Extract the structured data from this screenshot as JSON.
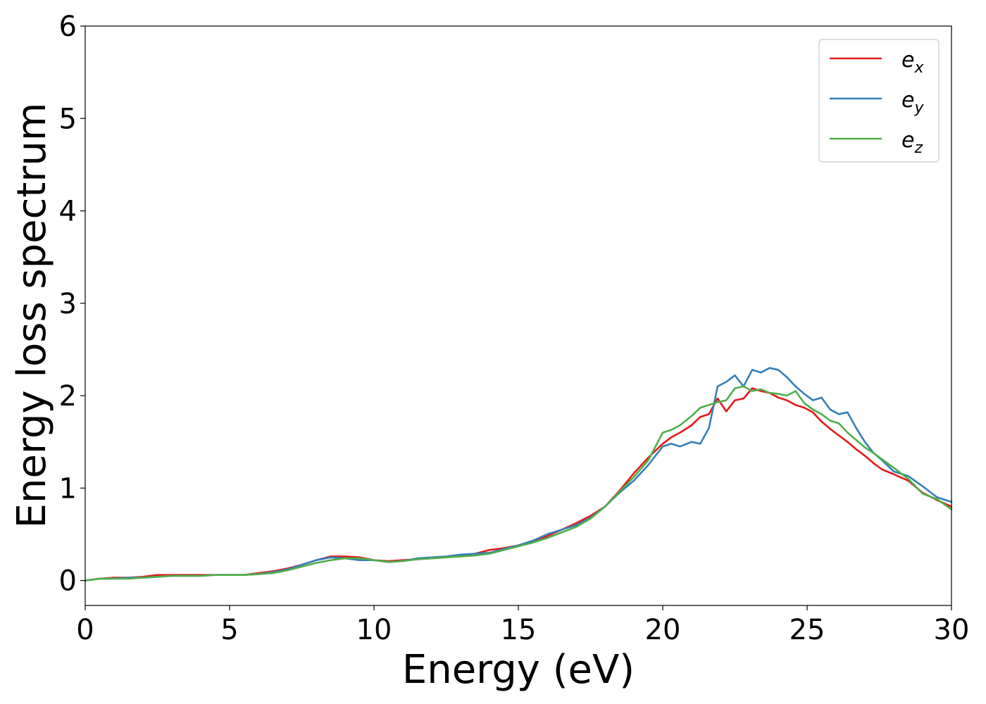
{
  "chart_data": {
    "type": "line",
    "title": "",
    "xlabel": "Energy (eV)",
    "ylabel": "Energy loss spectrum",
    "xlim": [
      0,
      30
    ],
    "ylim": [
      -0.27,
      6
    ],
    "xticks": [
      0,
      5,
      10,
      15,
      20,
      25,
      30
    ],
    "yticks": [
      0,
      1,
      2,
      3,
      4,
      5,
      6
    ],
    "grid": false,
    "legend_position": "top-right",
    "series": [
      {
        "name": "e_x",
        "legend_base": "e",
        "legend_sub": "x",
        "color": "#e41a1c",
        "x": [
          0,
          0.5,
          1,
          1.5,
          2,
          2.5,
          3,
          3.5,
          4,
          4.5,
          5,
          5.5,
          6,
          6.5,
          7,
          7.5,
          8,
          8.5,
          9,
          9.5,
          10,
          10.5,
          11,
          11.5,
          12,
          12.5,
          13,
          13.5,
          14,
          14.5,
          15,
          15.5,
          16,
          16.5,
          17,
          17.5,
          18,
          18.5,
          19,
          19.5,
          20,
          20.3,
          20.6,
          21,
          21.3,
          21.6,
          21.9,
          22.2,
          22.5,
          22.8,
          23.1,
          23.4,
          23.7,
          24,
          24.3,
          24.6,
          24.9,
          25.2,
          25.5,
          25.8,
          26.1,
          26.4,
          26.7,
          27,
          27.3,
          27.6,
          28,
          28.5,
          29,
          29.5,
          30
        ],
        "y": [
          0,
          0.02,
          0.03,
          0.03,
          0.04,
          0.06,
          0.06,
          0.06,
          0.06,
          0.06,
          0.06,
          0.06,
          0.08,
          0.1,
          0.13,
          0.17,
          0.22,
          0.26,
          0.26,
          0.25,
          0.22,
          0.21,
          0.22,
          0.23,
          0.24,
          0.25,
          0.27,
          0.29,
          0.33,
          0.35,
          0.38,
          0.43,
          0.48,
          0.55,
          0.62,
          0.7,
          0.8,
          0.97,
          1.16,
          1.33,
          1.48,
          1.55,
          1.6,
          1.68,
          1.77,
          1.8,
          1.97,
          1.83,
          1.95,
          1.97,
          2.08,
          2.05,
          2.03,
          1.98,
          1.95,
          1.9,
          1.87,
          1.82,
          1.72,
          1.64,
          1.57,
          1.5,
          1.42,
          1.35,
          1.27,
          1.2,
          1.15,
          1.08,
          0.95,
          0.87,
          0.8
        ]
      },
      {
        "name": "e_y",
        "legend_base": "e",
        "legend_sub": "y",
        "color": "#377eb8",
        "x": [
          0,
          0.5,
          1,
          1.5,
          2,
          2.5,
          3,
          3.5,
          4,
          4.5,
          5,
          5.5,
          6,
          6.5,
          7,
          7.5,
          8,
          8.5,
          9,
          9.5,
          10,
          10.5,
          11,
          11.5,
          12,
          12.5,
          13,
          13.5,
          14,
          14.5,
          15,
          15.5,
          16,
          16.5,
          17,
          17.5,
          18,
          18.5,
          19,
          19.5,
          20,
          20.3,
          20.6,
          21,
          21.3,
          21.6,
          21.9,
          22.2,
          22.5,
          22.8,
          23.1,
          23.4,
          23.7,
          24,
          24.3,
          24.6,
          24.9,
          25.2,
          25.5,
          25.8,
          26.1,
          26.4,
          26.7,
          27,
          27.3,
          27.6,
          28,
          28.5,
          29,
          29.5,
          30
        ],
        "y": [
          0,
          0.02,
          0.02,
          0.03,
          0.03,
          0.04,
          0.05,
          0.05,
          0.05,
          0.06,
          0.06,
          0.06,
          0.07,
          0.09,
          0.12,
          0.17,
          0.22,
          0.25,
          0.24,
          0.22,
          0.22,
          0.2,
          0.21,
          0.24,
          0.25,
          0.26,
          0.28,
          0.29,
          0.3,
          0.34,
          0.38,
          0.43,
          0.5,
          0.55,
          0.6,
          0.68,
          0.8,
          0.95,
          1.08,
          1.25,
          1.45,
          1.48,
          1.45,
          1.5,
          1.48,
          1.65,
          2.1,
          2.15,
          2.22,
          2.1,
          2.28,
          2.25,
          2.3,
          2.28,
          2.2,
          2.1,
          2.02,
          1.95,
          1.98,
          1.85,
          1.8,
          1.82,
          1.65,
          1.5,
          1.38,
          1.3,
          1.18,
          1.13,
          1.02,
          0.9,
          0.85
        ]
      },
      {
        "name": "e_z",
        "legend_base": "e",
        "legend_sub": "z",
        "color": "#4daf4a",
        "x": [
          0,
          0.5,
          1,
          1.5,
          2,
          2.5,
          3,
          3.5,
          4,
          4.5,
          5,
          5.5,
          6,
          6.5,
          7,
          7.5,
          8,
          8.5,
          9,
          9.5,
          10,
          10.5,
          11,
          11.5,
          12,
          12.5,
          13,
          13.5,
          14,
          14.5,
          15,
          15.5,
          16,
          16.5,
          17,
          17.5,
          18,
          18.5,
          19,
          19.5,
          20,
          20.3,
          20.6,
          21,
          21.3,
          21.6,
          21.9,
          22.2,
          22.5,
          22.8,
          23.1,
          23.4,
          23.7,
          24,
          24.3,
          24.6,
          24.9,
          25.2,
          25.5,
          25.8,
          26.1,
          26.4,
          26.7,
          27,
          27.3,
          27.6,
          28,
          28.5,
          29,
          29.5,
          30
        ],
        "y": [
          0,
          0.02,
          0.02,
          0.02,
          0.03,
          0.04,
          0.05,
          0.05,
          0.05,
          0.06,
          0.06,
          0.06,
          0.07,
          0.08,
          0.11,
          0.15,
          0.19,
          0.22,
          0.24,
          0.24,
          0.22,
          0.2,
          0.21,
          0.23,
          0.24,
          0.25,
          0.26,
          0.27,
          0.29,
          0.33,
          0.37,
          0.41,
          0.46,
          0.52,
          0.58,
          0.67,
          0.8,
          0.96,
          1.12,
          1.3,
          1.6,
          1.63,
          1.68,
          1.78,
          1.87,
          1.9,
          1.93,
          1.95,
          2.08,
          2.1,
          2.05,
          2.07,
          2.03,
          2.02,
          2.0,
          2.05,
          1.92,
          1.85,
          1.8,
          1.73,
          1.7,
          1.6,
          1.52,
          1.44,
          1.38,
          1.31,
          1.22,
          1.1,
          0.94,
          0.88,
          0.77
        ]
      }
    ]
  }
}
